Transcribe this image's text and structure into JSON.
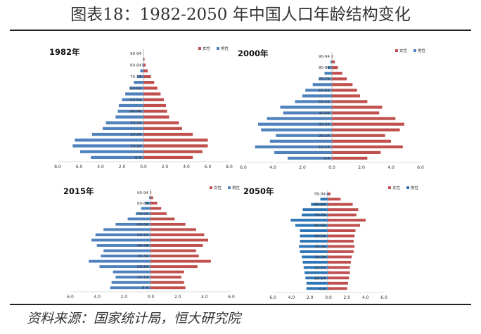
{
  "header": {
    "title": "图表18：1982-2050 年中国人口年龄结构变化"
  },
  "footer": {
    "source": "资料来源：国家统计局，恒大研究院"
  },
  "colors": {
    "female": "#c0504d",
    "male": "#4f81bd",
    "male_2050": "#2e75b6"
  },
  "chart_data": [
    {
      "type": "bar",
      "title": "1982年",
      "categories": [
        "0-4",
        "5-9",
        "10-14",
        "15-19",
        "20-24",
        "25-29",
        "30-34",
        "35-39",
        "40-44",
        "45-49",
        "50-54",
        "55-59",
        "60-64",
        "65-69",
        "70-74",
        "75-79",
        "80-84",
        "85-89",
        "90-94"
      ],
      "tick_labels": [
        "0-4",
        "10-14",
        "20-24",
        "30-34",
        "40-44",
        "50-54",
        "60-64",
        "70-74",
        "80-84",
        "90-94"
      ],
      "series": [
        {
          "name": "女性",
          "values": [
            4.6,
            5.5,
            6.0,
            6.0,
            4.6,
            3.6,
            3.3,
            2.4,
            2.2,
            2.1,
            1.9,
            1.6,
            1.3,
            1.0,
            0.7,
            0.4,
            0.2,
            0.1,
            0.02
          ]
        },
        {
          "name": "男性",
          "values": [
            4.9,
            5.9,
            6.6,
            6.4,
            4.8,
            3.8,
            3.5,
            2.6,
            2.4,
            2.3,
            2.0,
            1.7,
            1.3,
            0.9,
            0.6,
            0.3,
            0.1,
            0.05,
            0.01
          ]
        }
      ],
      "xticks": [
        "8.0",
        "6.0",
        "4.0",
        "2.0",
        "0.0",
        "2.0",
        "4.0",
        "6.0",
        "8.0"
      ],
      "xlim": [
        -8,
        8
      ]
    },
    {
      "type": "bar",
      "title": "2000年",
      "categories": [
        "0-4",
        "5-9",
        "10-14",
        "15-19",
        "20-24",
        "25-29",
        "30-34",
        "35-39",
        "40-44",
        "45-49",
        "50-54",
        "55-59",
        "60-64",
        "65-69",
        "70-74",
        "75-79",
        "80-84",
        "85-89",
        "90-94"
      ],
      "tick_labels": [
        "0-4",
        "10-14",
        "20-24",
        "30-34",
        "40-44",
        "50-54",
        "60-64",
        "70-74",
        "80-84",
        "90-94"
      ],
      "series": [
        {
          "name": "女性",
          "values": [
            2.4,
            3.3,
            4.8,
            4.0,
            3.6,
            4.6,
            4.9,
            4.3,
            3.2,
            3.4,
            2.4,
            1.9,
            1.7,
            1.4,
            1.0,
            0.7,
            0.4,
            0.2,
            0.05
          ]
        },
        {
          "name": "男性",
          "values": [
            3.0,
            3.9,
            5.2,
            4.2,
            3.8,
            4.8,
            5.0,
            4.4,
            3.3,
            3.5,
            2.5,
            2.0,
            1.8,
            1.3,
            0.9,
            0.5,
            0.3,
            0.1,
            0.02
          ]
        }
      ],
      "xticks": [
        "6.0",
        "4.0",
        "2.0",
        "0.0",
        "2.0",
        "4.0",
        "6.0"
      ],
      "xlim": [
        -6,
        6
      ]
    },
    {
      "type": "bar",
      "title": "2015年",
      "categories": [
        "0-4",
        "5-9",
        "10-14",
        "15-19",
        "20-24",
        "25-29",
        "30-34",
        "35-39",
        "40-44",
        "45-49",
        "50-54",
        "55-59",
        "60-64",
        "65-69",
        "70-74",
        "75-79",
        "80-84",
        "85-89",
        "90-94"
      ],
      "tick_labels": [
        "0-4",
        "10-14",
        "20-24",
        "30-34",
        "40-44",
        "50-54",
        "60-64",
        "70-74",
        "80-84",
        "90-94"
      ],
      "series": [
        {
          "name": "女性",
          "values": [
            2.6,
            2.5,
            2.3,
            2.5,
            3.5,
            4.5,
            3.6,
            3.4,
            3.9,
            4.3,
            4.0,
            3.4,
            2.6,
            1.8,
            1.2,
            0.8,
            0.5,
            0.2,
            0.06
          ]
        },
        {
          "name": "男性",
          "values": [
            3.0,
            2.9,
            2.6,
            2.8,
            3.8,
            4.6,
            3.7,
            3.5,
            4.0,
            4.4,
            4.1,
            3.5,
            2.6,
            1.7,
            1.1,
            0.7,
            0.4,
            0.1,
            0.02
          ]
        }
      ],
      "xticks": [
        "6.0",
        "4.0",
        "2.0",
        "0.0",
        "2.0",
        "4.0",
        "6.0"
      ],
      "xlim": [
        -6,
        6
      ]
    },
    {
      "type": "bar",
      "title": "2050年",
      "categories": [
        "0-4",
        "5-9",
        "10-14",
        "15-19",
        "20-24",
        "25-29",
        "30-34",
        "35-39",
        "40-44",
        "45-49",
        "50-54",
        "55-59",
        "60-64",
        "65-69",
        "70-74",
        "75-79",
        "80-84",
        "85-89",
        "90-94"
      ],
      "tick_labels": [
        "0-4",
        "10-14",
        "20-24",
        "30-34",
        "40-44",
        "50-54",
        "60-64",
        "70-74",
        "80-84",
        "90-94"
      ],
      "series": [
        {
          "name": "女性",
          "values": [
            2.1,
            2.2,
            2.3,
            2.4,
            2.4,
            2.5,
            2.6,
            2.8,
            2.9,
            2.8,
            2.9,
            3.0,
            3.5,
            4.1,
            3.1,
            3.3,
            2.7,
            1.4,
            0.3
          ]
        },
        {
          "name": "男性",
          "values": [
            2.3,
            2.3,
            2.4,
            2.5,
            2.6,
            2.7,
            2.8,
            3.0,
            3.1,
            3.0,
            3.0,
            3.0,
            3.5,
            4.0,
            2.8,
            2.7,
            1.8,
            0.8,
            0.1
          ]
        }
      ],
      "xticks": [
        "6.0",
        "4.0",
        "2.0",
        "0.0",
        "2.0",
        "4.0",
        "6.0"
      ],
      "xlim": [
        -6,
        6
      ]
    }
  ]
}
